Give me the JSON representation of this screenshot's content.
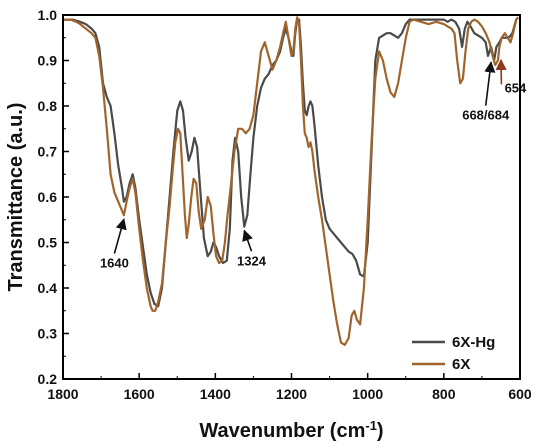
{
  "chart_data": {
    "type": "line",
    "xlabel_main": "Wavenumber (cm",
    "xlabel_sup": "-1",
    "xlabel_end": ")",
    "ylabel": "Transmittance (a.u.)",
    "xlim": [
      1800,
      600
    ],
    "ylim": [
      0.2,
      1.0
    ],
    "x_ticks": [
      1800,
      1600,
      1400,
      1200,
      1000,
      800,
      600
    ],
    "y_ticks": [
      0.2,
      0.3,
      0.4,
      0.5,
      0.6,
      0.7,
      0.8,
      0.9,
      1.0
    ],
    "x_tick_labels": [
      "1800",
      "1600",
      "1400",
      "1200",
      "1000",
      "800",
      "600"
    ],
    "y_tick_labels": [
      "0.2",
      "0.3",
      "0.4",
      "0.5",
      "0.6",
      "0.7",
      "0.8",
      "0.9",
      "1.0"
    ],
    "legend_position": "bottom-right",
    "series": [
      {
        "name": "6X-Hg",
        "color": "#4a4a4a",
        "points": [
          [
            1800,
            0.99
          ],
          [
            1775,
            0.99
          ],
          [
            1755,
            0.985
          ],
          [
            1740,
            0.98
          ],
          [
            1725,
            0.97
          ],
          [
            1715,
            0.96
          ],
          [
            1705,
            0.93
          ],
          [
            1695,
            0.85
          ],
          [
            1685,
            0.82
          ],
          [
            1675,
            0.8
          ],
          [
            1665,
            0.74
          ],
          [
            1655,
            0.67
          ],
          [
            1645,
            0.62
          ],
          [
            1640,
            0.59
          ],
          [
            1633,
            0.6
          ],
          [
            1625,
            0.63
          ],
          [
            1617,
            0.65
          ],
          [
            1610,
            0.62
          ],
          [
            1600,
            0.55
          ],
          [
            1590,
            0.49
          ],
          [
            1580,
            0.43
          ],
          [
            1570,
            0.39
          ],
          [
            1560,
            0.365
          ],
          [
            1550,
            0.36
          ],
          [
            1540,
            0.4
          ],
          [
            1530,
            0.5
          ],
          [
            1520,
            0.6
          ],
          [
            1510,
            0.7
          ],
          [
            1500,
            0.79
          ],
          [
            1492,
            0.81
          ],
          [
            1485,
            0.79
          ],
          [
            1478,
            0.73
          ],
          [
            1470,
            0.68
          ],
          [
            1462,
            0.7
          ],
          [
            1455,
            0.73
          ],
          [
            1448,
            0.71
          ],
          [
            1440,
            0.62
          ],
          [
            1430,
            0.51
          ],
          [
            1420,
            0.47
          ],
          [
            1412,
            0.48
          ],
          [
            1405,
            0.5
          ],
          [
            1398,
            0.49
          ],
          [
            1390,
            0.47
          ],
          [
            1380,
            0.455
          ],
          [
            1370,
            0.46
          ],
          [
            1362,
            0.53
          ],
          [
            1355,
            0.68
          ],
          [
            1348,
            0.73
          ],
          [
            1340,
            0.7
          ],
          [
            1332,
            0.6
          ],
          [
            1324,
            0.535
          ],
          [
            1316,
            0.56
          ],
          [
            1308,
            0.65
          ],
          [
            1300,
            0.73
          ],
          [
            1290,
            0.8
          ],
          [
            1280,
            0.84
          ],
          [
            1270,
            0.86
          ],
          [
            1260,
            0.87
          ],
          [
            1250,
            0.89
          ],
          [
            1240,
            0.9
          ],
          [
            1230,
            0.92
          ],
          [
            1222,
            0.95
          ],
          [
            1215,
            0.97
          ],
          [
            1208,
            0.95
          ],
          [
            1200,
            0.92
          ],
          [
            1195,
            0.91
          ],
          [
            1190,
            0.96
          ],
          [
            1185,
            0.99
          ],
          [
            1180,
            0.99
          ],
          [
            1175,
            0.93
          ],
          [
            1170,
            0.85
          ],
          [
            1165,
            0.79
          ],
          [
            1160,
            0.78
          ],
          [
            1155,
            0.8
          ],
          [
            1150,
            0.81
          ],
          [
            1145,
            0.8
          ],
          [
            1140,
            0.76
          ],
          [
            1130,
            0.67
          ],
          [
            1120,
            0.6
          ],
          [
            1110,
            0.55
          ],
          [
            1100,
            0.53
          ],
          [
            1090,
            0.52
          ],
          [
            1080,
            0.51
          ],
          [
            1070,
            0.5
          ],
          [
            1060,
            0.49
          ],
          [
            1050,
            0.48
          ],
          [
            1040,
            0.475
          ],
          [
            1030,
            0.46
          ],
          [
            1020,
            0.43
          ],
          [
            1010,
            0.425
          ],
          [
            1000,
            0.5
          ],
          [
            990,
            0.7
          ],
          [
            980,
            0.9
          ],
          [
            970,
            0.95
          ],
          [
            960,
            0.955
          ],
          [
            950,
            0.96
          ],
          [
            940,
            0.96
          ],
          [
            930,
            0.955
          ],
          [
            920,
            0.95
          ],
          [
            910,
            0.96
          ],
          [
            900,
            0.98
          ],
          [
            890,
            0.99
          ],
          [
            880,
            0.99
          ],
          [
            860,
            0.99
          ],
          [
            840,
            0.99
          ],
          [
            820,
            0.99
          ],
          [
            800,
            0.99
          ],
          [
            790,
            0.985
          ],
          [
            780,
            0.99
          ],
          [
            770,
            0.985
          ],
          [
            760,
            0.97
          ],
          [
            752,
            0.93
          ],
          [
            745,
            0.97
          ],
          [
            738,
            0.985
          ],
          [
            730,
            0.975
          ],
          [
            720,
            0.96
          ],
          [
            710,
            0.955
          ],
          [
            700,
            0.95
          ],
          [
            690,
            0.94
          ],
          [
            684,
            0.91
          ],
          [
            676,
            0.93
          ],
          [
            668,
            0.9
          ],
          [
            662,
            0.93
          ],
          [
            654,
            0.94
          ],
          [
            648,
            0.95
          ],
          [
            640,
            0.95
          ],
          [
            630,
            0.95
          ],
          [
            620,
            0.96
          ],
          [
            610,
            0.99
          ],
          [
            605,
            0.995
          ]
        ]
      },
      {
        "name": "6X",
        "color": "#a0652d",
        "points": [
          [
            1800,
            0.99
          ],
          [
            1780,
            0.99
          ],
          [
            1765,
            0.985
          ],
          [
            1755,
            0.98
          ],
          [
            1740,
            0.97
          ],
          [
            1725,
            0.96
          ],
          [
            1715,
            0.95
          ],
          [
            1705,
            0.91
          ],
          [
            1695,
            0.84
          ],
          [
            1685,
            0.75
          ],
          [
            1675,
            0.65
          ],
          [
            1665,
            0.61
          ],
          [
            1655,
            0.59
          ],
          [
            1645,
            0.57
          ],
          [
            1640,
            0.56
          ],
          [
            1633,
            0.59
          ],
          [
            1625,
            0.62
          ],
          [
            1617,
            0.64
          ],
          [
            1610,
            0.61
          ],
          [
            1600,
            0.53
          ],
          [
            1590,
            0.46
          ],
          [
            1580,
            0.4
          ],
          [
            1570,
            0.36
          ],
          [
            1565,
            0.35
          ],
          [
            1558,
            0.35
          ],
          [
            1550,
            0.37
          ],
          [
            1540,
            0.41
          ],
          [
            1530,
            0.5
          ],
          [
            1520,
            0.58
          ],
          [
            1512,
            0.66
          ],
          [
            1505,
            0.72
          ],
          [
            1498,
            0.75
          ],
          [
            1492,
            0.74
          ],
          [
            1486,
            0.65
          ],
          [
            1480,
            0.56
          ],
          [
            1475,
            0.51
          ],
          [
            1470,
            0.54
          ],
          [
            1463,
            0.6
          ],
          [
            1457,
            0.64
          ],
          [
            1450,
            0.63
          ],
          [
            1444,
            0.57
          ],
          [
            1437,
            0.53
          ],
          [
            1428,
            0.55
          ],
          [
            1420,
            0.6
          ],
          [
            1412,
            0.58
          ],
          [
            1405,
            0.52
          ],
          [
            1398,
            0.47
          ],
          [
            1390,
            0.455
          ],
          [
            1382,
            0.46
          ],
          [
            1375,
            0.5
          ],
          [
            1368,
            0.56
          ],
          [
            1360,
            0.62
          ],
          [
            1350,
            0.7
          ],
          [
            1340,
            0.75
          ],
          [
            1330,
            0.75
          ],
          [
            1320,
            0.74
          ],
          [
            1310,
            0.75
          ],
          [
            1300,
            0.78
          ],
          [
            1290,
            0.85
          ],
          [
            1280,
            0.92
          ],
          [
            1270,
            0.94
          ],
          [
            1260,
            0.91
          ],
          [
            1250,
            0.88
          ],
          [
            1240,
            0.9
          ],
          [
            1230,
            0.93
          ],
          [
            1222,
            0.96
          ],
          [
            1215,
            0.985
          ],
          [
            1208,
            0.95
          ],
          [
            1200,
            0.91
          ],
          [
            1195,
            0.92
          ],
          [
            1190,
            0.97
          ],
          [
            1185,
            0.995
          ],
          [
            1180,
            0.98
          ],
          [
            1175,
            0.9
          ],
          [
            1170,
            0.8
          ],
          [
            1165,
            0.74
          ],
          [
            1160,
            0.73
          ],
          [
            1155,
            0.71
          ],
          [
            1150,
            0.72
          ],
          [
            1145,
            0.7
          ],
          [
            1140,
            0.66
          ],
          [
            1130,
            0.6
          ],
          [
            1120,
            0.55
          ],
          [
            1110,
            0.49
          ],
          [
            1100,
            0.43
          ],
          [
            1090,
            0.37
          ],
          [
            1080,
            0.32
          ],
          [
            1070,
            0.28
          ],
          [
            1060,
            0.275
          ],
          [
            1050,
            0.29
          ],
          [
            1042,
            0.34
          ],
          [
            1035,
            0.35
          ],
          [
            1028,
            0.33
          ],
          [
            1020,
            0.32
          ],
          [
            1010,
            0.4
          ],
          [
            1000,
            0.55
          ],
          [
            990,
            0.72
          ],
          [
            980,
            0.86
          ],
          [
            970,
            0.92
          ],
          [
            960,
            0.9
          ],
          [
            950,
            0.86
          ],
          [
            940,
            0.83
          ],
          [
            930,
            0.82
          ],
          [
            920,
            0.85
          ],
          [
            910,
            0.9
          ],
          [
            900,
            0.95
          ],
          [
            890,
            0.985
          ],
          [
            880,
            0.99
          ],
          [
            860,
            0.985
          ],
          [
            840,
            0.98
          ],
          [
            820,
            0.985
          ],
          [
            800,
            0.98
          ],
          [
            790,
            0.975
          ],
          [
            780,
            0.97
          ],
          [
            772,
            0.96
          ],
          [
            765,
            0.9
          ],
          [
            757,
            0.85
          ],
          [
            750,
            0.86
          ],
          [
            743,
            0.92
          ],
          [
            736,
            0.97
          ],
          [
            728,
            0.985
          ],
          [
            720,
            0.99
          ],
          [
            710,
            0.985
          ],
          [
            700,
            0.975
          ],
          [
            690,
            0.96
          ],
          [
            680,
            0.94
          ],
          [
            672,
            0.91
          ],
          [
            665,
            0.89
          ],
          [
            658,
            0.9
          ],
          [
            654,
            0.93
          ],
          [
            648,
            0.95
          ],
          [
            640,
            0.96
          ],
          [
            632,
            0.95
          ],
          [
            625,
            0.94
          ],
          [
            618,
            0.96
          ],
          [
            610,
            0.99
          ],
          [
            605,
            0.995
          ]
        ]
      }
    ],
    "annotations": [
      {
        "label": "1640",
        "x": 1640,
        "y": 0.56,
        "color": "#111111",
        "text_x": 1665,
        "text_y": 0.445
      },
      {
        "label": "1324",
        "x": 1324,
        "y": 0.535,
        "color": "#111111",
        "text_x": 1305,
        "text_y": 0.45
      },
      {
        "label": "668/684",
        "x": 676,
        "y": 0.905,
        "color": "#111111",
        "text_x": 690,
        "text_y": 0.77
      },
      {
        "label": "654",
        "x": 650,
        "y": 0.91,
        "color": "#8b3a1a",
        "text_x": 612,
        "text_y": 0.83
      }
    ]
  }
}
